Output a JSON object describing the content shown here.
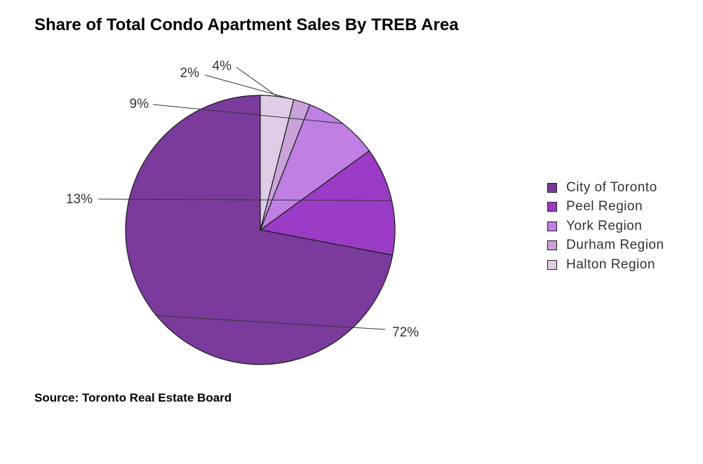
{
  "chart_data": {
    "type": "pie",
    "title": "Share of Total Condo Apartment Sales By TREB Area",
    "categories": [
      "City of Toronto",
      "Peel Region",
      "York Region",
      "Durham Region",
      "Halton Region"
    ],
    "values": [
      72,
      13,
      9,
      2,
      4
    ],
    "value_labels": [
      "72%",
      "13%",
      "9%",
      "2%",
      "4%"
    ],
    "colors": [
      "#7a3b9c",
      "#9a3cc6",
      "#c07fe2",
      "#c9a3da",
      "#e0cce6"
    ],
    "slice_order": "counterclockwise from 12 o'clock",
    "legend": {
      "placement": "right",
      "entries": [
        {
          "label": "City of Toronto",
          "color": "#7a3b9c"
        },
        {
          "label": "Peel Region",
          "color": "#9a3cc6"
        },
        {
          "label": "York Region",
          "color": "#c07fe2"
        },
        {
          "label": "Durham Region",
          "color": "#c9a3da"
        },
        {
          "label": "Halton Region",
          "color": "#e0cce6"
        }
      ]
    },
    "source": "Source: Toronto Real Estate Board"
  }
}
